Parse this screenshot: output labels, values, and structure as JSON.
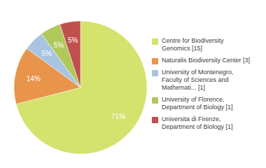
{
  "chart_data": {
    "type": "pie",
    "categories": [
      "Centre for Biodiversity\nGenomics [15]",
      "Naturalis Biodiversity Center [3]",
      "University of Montenegro,\nFaculty of Sciences and\nMathemati... [1]",
      "University of Florence,\nDepartment of Biology [1]",
      "Universita di Firenze,\nDepartment of Biology [1]"
    ],
    "values": [
      71,
      14,
      5,
      5,
      5
    ],
    "value_labels": [
      "71%",
      "14%",
      "5%",
      "5%",
      "5%"
    ],
    "colors": [
      "#d4e26e",
      "#e8944a",
      "#a8c4e0",
      "#b0c85a",
      "#c0504d"
    ],
    "data_labels": true,
    "legend": "right"
  }
}
